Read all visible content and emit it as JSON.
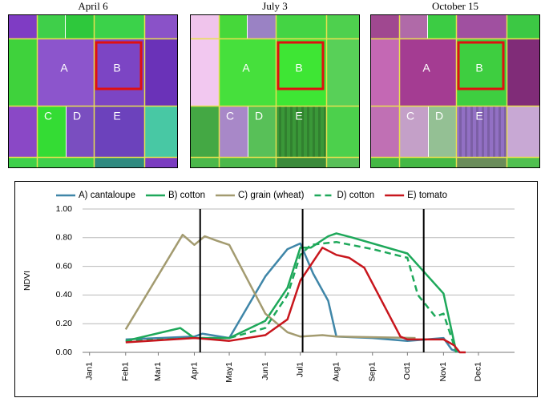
{
  "images": [
    {
      "title": "April 6",
      "labels": [
        "A",
        "B",
        "C",
        "D",
        "E"
      ]
    },
    {
      "title": "July 3",
      "labels": [
        "A",
        "B",
        "C",
        "D",
        "E"
      ]
    },
    {
      "title": "October 15",
      "labels": [
        "A",
        "B",
        "C",
        "D",
        "E"
      ]
    }
  ],
  "chart_data": {
    "type": "line",
    "ylabel": "NDVI",
    "xlim": [
      -6,
      365
    ],
    "xticks": [
      {
        "value": 0,
        "label": "Jan1"
      },
      {
        "value": 31,
        "label": "Feb1"
      },
      {
        "value": 59,
        "label": "Mar1"
      },
      {
        "value": 90,
        "label": "Apr1"
      },
      {
        "value": 120,
        "label": "May1"
      },
      {
        "value": 151,
        "label": "Jun1"
      },
      {
        "value": 181,
        "label": "Jul1"
      },
      {
        "value": 212,
        "label": "Aug1"
      },
      {
        "value": 243,
        "label": "Sep1"
      },
      {
        "value": 273,
        "label": "Oct1"
      },
      {
        "value": 304,
        "label": "Nov1"
      },
      {
        "value": 334,
        "label": "Dec1"
      }
    ],
    "ylim": [
      0,
      1
    ],
    "yticks": [
      {
        "value": 0,
        "label": "0.00"
      },
      {
        "value": 0.2,
        "label": "0.20"
      },
      {
        "value": 0.4,
        "label": "0.40"
      },
      {
        "value": 0.6,
        "label": "0.60"
      },
      {
        "value": 0.8,
        "label": "0.80"
      },
      {
        "value": 1,
        "label": "1.00"
      }
    ],
    "grid": true,
    "vlines": [
      95,
      183,
      287
    ],
    "series": [
      {
        "name": "A) cantaloupe",
        "color": "#3f86a8",
        "dashed": false,
        "x": [
          31,
          90,
          97,
          120,
          151,
          170,
          181,
          192,
          205,
          212,
          243,
          273,
          304,
          311,
          318
        ],
        "values": [
          0.09,
          0.11,
          0.13,
          0.1,
          0.53,
          0.72,
          0.76,
          0.55,
          0.36,
          0.11,
          0.1,
          0.08,
          0.1,
          0.02,
          0.0
        ]
      },
      {
        "name": "B) cotton",
        "color": "#1ea85a",
        "dashed": false,
        "x": [
          31,
          78,
          90,
          120,
          151,
          170,
          181,
          190,
          205,
          212,
          226,
          273,
          304,
          315
        ],
        "values": [
          0.08,
          0.17,
          0.1,
          0.1,
          0.22,
          0.45,
          0.73,
          0.73,
          0.81,
          0.83,
          0.8,
          0.69,
          0.41,
          0.0
        ]
      },
      {
        "name": "C) grain (wheat)",
        "color": "#a39b70",
        "dashed": false,
        "x": [
          31,
          80,
          90,
          99,
          109,
          120,
          151,
          170,
          181,
          200,
          212,
          280
        ],
        "values": [
          0.16,
          0.82,
          0.75,
          0.81,
          0.78,
          0.75,
          0.27,
          0.14,
          0.11,
          0.12,
          0.11,
          0.1
        ]
      },
      {
        "name": "D) cotton",
        "color": "#1ea85a",
        "dashed": true,
        "x": [
          31,
          90,
          120,
          151,
          170,
          181,
          190,
          212,
          243,
          273,
          282,
          297,
          304,
          315
        ],
        "values": [
          0.08,
          0.1,
          0.1,
          0.17,
          0.4,
          0.68,
          0.75,
          0.77,
          0.72,
          0.66,
          0.4,
          0.25,
          0.27,
          0.0
        ]
      },
      {
        "name": "E) tomato",
        "color": "#c8161d",
        "dashed": false,
        "x": [
          31,
          90,
          120,
          151,
          170,
          181,
          200,
          212,
          223,
          236,
          267,
          273,
          304,
          313,
          318,
          323
        ],
        "values": [
          0.07,
          0.1,
          0.08,
          0.12,
          0.23,
          0.5,
          0.73,
          0.68,
          0.66,
          0.59,
          0.11,
          0.09,
          0.09,
          0.05,
          0.0,
          0.0
        ]
      }
    ]
  }
}
